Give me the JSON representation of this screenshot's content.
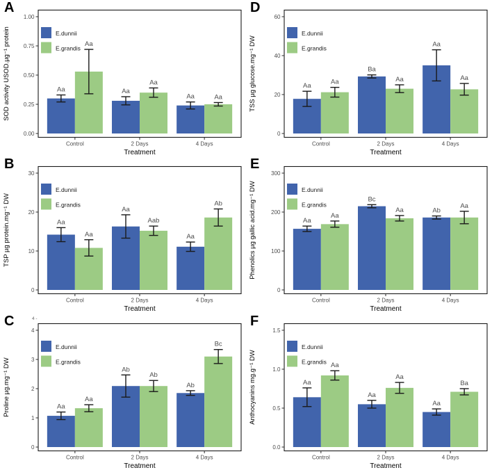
{
  "figure": {
    "xlabel": "Treatment",
    "categories": [
      "Control",
      "2 Days",
      "4 Days"
    ],
    "legend": [
      "E.dunnii",
      "E.grandis"
    ],
    "colors": {
      "edunnii_bar": "#4164AC",
      "egrandis_bar": "#9CCB84",
      "error_bar": "#1a1a1a",
      "tick_text": "#4d4d4d",
      "sig_text": "#4d4d4d",
      "axis_line": "#2b2b2b",
      "panel_border": "#1a1a1a",
      "title_text": "#000000"
    }
  },
  "chart_data": [
    {
      "type": "bar",
      "panel": "A",
      "ylabel": "SOD activity USOD.µg⁻¹ protein",
      "xlabel": "Treatment",
      "categories": [
        "Control",
        "2 Days",
        "4 Days"
      ],
      "ylim": [
        0,
        1.0
      ],
      "ymax_tick": 1.0,
      "ytick_labels": [
        "0.00",
        "0.25",
        "0.50",
        "0.75",
        "1.00"
      ],
      "ytick_values": [
        0,
        0.25,
        0.5,
        0.75,
        1.0
      ],
      "grid": false,
      "legend_position": "top-left",
      "series": [
        {
          "name": "E.dunnii",
          "values": [
            0.3,
            0.28,
            0.24
          ],
          "errors": [
            0.03,
            0.035,
            0.03
          ],
          "sig_labels": [
            "Aa",
            "Aa",
            "Aa"
          ]
        },
        {
          "name": "E.grandis",
          "values": [
            0.53,
            0.35,
            0.25
          ],
          "errors": [
            0.19,
            0.04,
            0.015
          ],
          "sig_labels": [
            "Aa",
            "Aa",
            "Aa"
          ]
        }
      ]
    },
    {
      "type": "bar",
      "panel": "B",
      "ylabel": "TSP µg protein.mg⁻¹ DW",
      "xlabel": "Treatment",
      "categories": [
        "Control",
        "2 Days",
        "4 Days"
      ],
      "ylim": [
        0,
        30
      ],
      "ymax_tick": 30,
      "ytick_labels": [
        "0",
        "10",
        "20",
        "30"
      ],
      "ytick_values": [
        0,
        10,
        20,
        30
      ],
      "grid": false,
      "legend_position": "top-left",
      "series": [
        {
          "name": "E.dunnii",
          "values": [
            14.2,
            16.3,
            11.1
          ],
          "errors": [
            1.8,
            3.0,
            1.2
          ],
          "sig_labels": [
            "Aa",
            "Aa",
            "Aa"
          ]
        },
        {
          "name": "E.grandis",
          "values": [
            10.8,
            15.2,
            18.6
          ],
          "errors": [
            2.1,
            1.2,
            2.2
          ],
          "sig_labels": [
            "Aa",
            "Aab",
            "Ab"
          ]
        }
      ]
    },
    {
      "type": "bar",
      "panel": "C",
      "ylabel": "Proline µg.mg⁻¹ DW",
      "xlabel": "Treatment",
      "categories": [
        "Control",
        "2 Days",
        "4 Days"
      ],
      "ylim": [
        0,
        4
      ],
      "ymax_tick": 4,
      "ytick_labels": [
        "0",
        "1",
        "2",
        "3",
        "4"
      ],
      "ytick_values": [
        0,
        1,
        2,
        3,
        4
      ],
      "grid": false,
      "legend_position": "top-left",
      "artifact_text": "4 -",
      "series": [
        {
          "name": "E.dunnii",
          "values": [
            1.07,
            2.09,
            1.85
          ],
          "errors": [
            0.13,
            0.38,
            0.08
          ],
          "sig_labels": [
            "Aa",
            "Ab",
            "Ab"
          ]
        },
        {
          "name": "E.grandis",
          "values": [
            1.33,
            2.09,
            3.1
          ],
          "errors": [
            0.12,
            0.19,
            0.24
          ],
          "sig_labels": [
            "Aa",
            "Ab",
            "Bc"
          ]
        }
      ]
    },
    {
      "type": "bar",
      "panel": "D",
      "ylabel": "TSS µg glucose.mg⁻¹ DW",
      "xlabel": "Treatment",
      "categories": [
        "Control",
        "2 Days",
        "4 Days"
      ],
      "ylim": [
        0,
        60
      ],
      "ymax_tick": 60,
      "ytick_labels": [
        "0",
        "20",
        "40",
        "60"
      ],
      "ytick_values": [
        0,
        20,
        40,
        60
      ],
      "grid": false,
      "legend_position": "top-left",
      "series": [
        {
          "name": "E.dunnii",
          "values": [
            17.8,
            29.3,
            35.0
          ],
          "errors": [
            3.9,
            0.8,
            8.0
          ],
          "sig_labels": [
            "Aa",
            "Ba",
            "Aa"
          ]
        },
        {
          "name": "E.grandis",
          "values": [
            21.2,
            23.0,
            22.7
          ],
          "errors": [
            2.5,
            2.0,
            3.0
          ],
          "sig_labels": [
            "Aa",
            "Aa",
            "Aa"
          ]
        }
      ]
    },
    {
      "type": "bar",
      "panel": "E",
      "ylabel": "Phenolics µg gallic acid.mg⁻¹ DW",
      "xlabel": "Treatment",
      "categories": [
        "Control",
        "2 Days",
        "4 Days"
      ],
      "ylim": [
        0,
        300
      ],
      "ymax_tick": 300,
      "ytick_labels": [
        "0",
        "100",
        "200",
        "300"
      ],
      "ytick_values": [
        0,
        100,
        200,
        300
      ],
      "grid": false,
      "legend_position": "top-left",
      "series": [
        {
          "name": "E.dunnii",
          "values": [
            157,
            215,
            186
          ],
          "errors": [
            7,
            4,
            4
          ],
          "sig_labels": [
            "Aa",
            "Bc",
            "Ab"
          ]
        },
        {
          "name": "E.grandis",
          "values": [
            169,
            184,
            186
          ],
          "errors": [
            8,
            7,
            16
          ],
          "sig_labels": [
            "Aa",
            "Aa",
            "Aa"
          ]
        }
      ]
    },
    {
      "type": "bar",
      "panel": "F",
      "ylabel": "Anthocyanins mg.g⁻¹ DW",
      "xlabel": "Treatment",
      "categories": [
        "Control",
        "2 Days",
        "4 Days"
      ],
      "ylim": [
        0,
        1.5
      ],
      "ymax_tick": 1.5,
      "ytick_labels": [
        "0.0",
        "0.5",
        "1.0",
        "1.5"
      ],
      "ytick_values": [
        0,
        0.5,
        1.0,
        1.5
      ],
      "grid": false,
      "legend_position": "top-left",
      "series": [
        {
          "name": "E.dunnii",
          "values": [
            0.64,
            0.55,
            0.45
          ],
          "errors": [
            0.12,
            0.05,
            0.04
          ],
          "sig_labels": [
            "Aa",
            "Aa",
            "Aa"
          ]
        },
        {
          "name": "E.grandis",
          "values": [
            0.92,
            0.76,
            0.71
          ],
          "errors": [
            0.06,
            0.07,
            0.04
          ],
          "sig_labels": [
            "Aa",
            "Aa",
            "Ba"
          ]
        }
      ]
    }
  ]
}
